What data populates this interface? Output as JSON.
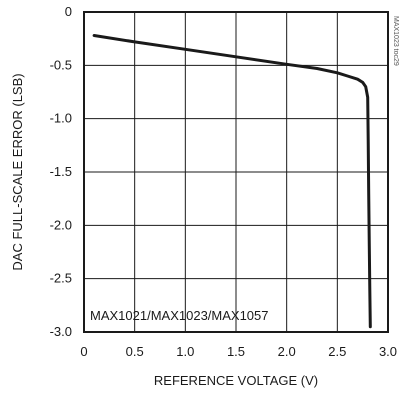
{
  "chart_data": {
    "type": "line",
    "title": "",
    "xlabel": "REFERENCE VOLTAGE (V)",
    "ylabel": "DAC FULL-SCALE ERROR (LSB)",
    "xlim": [
      0,
      3.0
    ],
    "ylim": [
      -3.0,
      0
    ],
    "x_ticks": [
      0,
      0.5,
      1.0,
      1.5,
      2.0,
      2.5,
      3.0
    ],
    "x_tick_labels": [
      "0",
      "0.5",
      "1.0",
      "1.5",
      "2.0",
      "2.5",
      "3.0"
    ],
    "y_ticks": [
      0,
      -0.5,
      -1.0,
      -1.5,
      -2.0,
      -2.5,
      -3.0
    ],
    "y_tick_labels": [
      "0",
      "-0.5",
      "-1.0",
      "-1.5",
      "-2.0",
      "-2.5",
      "-3.0"
    ],
    "grid": true,
    "annotation": "MAX1021/MAX1023/MAX1057",
    "side_code": "MAX1023 toc29",
    "series": [
      {
        "color": "#1a1a1a",
        "x": [
          0.1,
          0.5,
          1.0,
          1.5,
          2.0,
          2.3,
          2.5,
          2.6,
          2.7,
          2.75,
          2.78,
          2.8,
          2.805,
          2.81,
          2.815,
          2.82,
          2.825
        ],
        "y": [
          -0.22,
          -0.28,
          -0.35,
          -0.42,
          -0.49,
          -0.53,
          -0.57,
          -0.6,
          -0.63,
          -0.66,
          -0.7,
          -0.8,
          -1.2,
          -1.7,
          -2.2,
          -2.6,
          -2.95
        ]
      }
    ]
  }
}
